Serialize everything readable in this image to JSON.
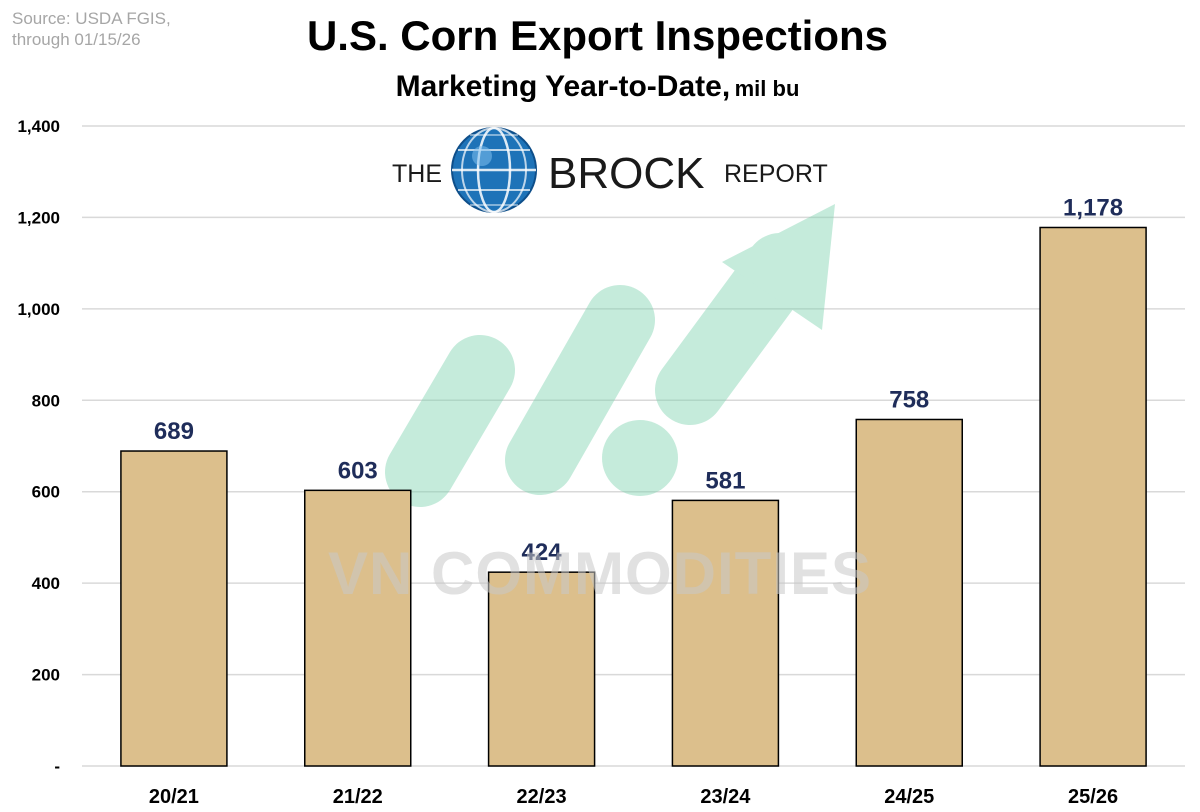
{
  "source": {
    "line1": "Source: USDA FGIS,",
    "line2": "through 01/15/26"
  },
  "header": {
    "title": "U.S. Corn Export Inspections",
    "subtitle": "Marketing Year-to-Date,",
    "unit": "mil bu"
  },
  "logo": {
    "the": "THE",
    "brock": "BROCK",
    "report": "REPORT"
  },
  "watermark": {
    "text": "VN COMMODITIES"
  },
  "colors": {
    "bar_fill": "#dcbf8c",
    "bar_stroke": "#000000",
    "label_color": "#1f2d5a",
    "gridline": "#d9d9d9",
    "arrow": "#7fd3b0",
    "globe": "#1e73b8"
  },
  "chart_data": {
    "type": "bar",
    "title": "U.S. Corn Export Inspections",
    "subtitle": "Marketing Year-to-Date, mil bu",
    "categories": [
      "20/21",
      "21/22",
      "22/23",
      "23/24",
      "24/25",
      "25/26"
    ],
    "values": [
      689,
      603,
      424,
      581,
      758,
      1178
    ],
    "data_labels": [
      "689",
      "603",
      "424",
      "581",
      "758",
      "1,178"
    ],
    "yticks": [
      "-",
      "200",
      "400",
      "600",
      "800",
      "1,000",
      "1,200",
      "1,400"
    ],
    "ytick_values": [
      0,
      200,
      400,
      600,
      800,
      1000,
      1200,
      1400
    ],
    "ylim": [
      0,
      1400
    ],
    "grid": true,
    "legend": "none"
  }
}
